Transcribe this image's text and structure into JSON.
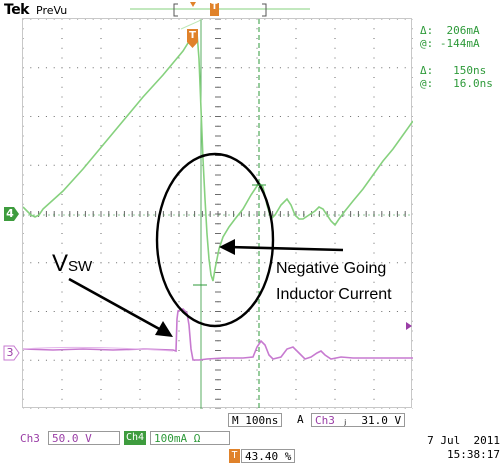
{
  "header": {
    "brand": "Tek",
    "mode": "PreVu",
    "trigger_marker": "T"
  },
  "cursor_readout": {
    "amp_delta_label": "Δ:",
    "amp_delta_value": "206mA",
    "amp_at_label": "@:",
    "amp_at_value": "-144mA",
    "time_delta_label": "Δ:",
    "time_delta_value": "150ns",
    "time_at_label": "@:",
    "time_at_value": "16.0ns"
  },
  "channels": {
    "ch4_marker": "4",
    "ch3_marker": "3"
  },
  "annotations": {
    "vsw_main": "V",
    "vsw_sub": "SW",
    "neg_line1": "Negative Going",
    "neg_line2": "Inductor Current"
  },
  "bottom_bar": {
    "timebase_prefix": "M",
    "timebase": "100ns",
    "trigger_mode": "A",
    "trigger_source": "Ch3",
    "trigger_slope": "ⱼ",
    "trigger_level": "31.0 V",
    "ch3_label": "Ch3",
    "ch3_scale": "50.0 V",
    "ch4_label": "Ch4",
    "ch4_scale": "100mA Ω",
    "trigger_pos_marker": "T",
    "trigger_pos": "43.40 %",
    "date": "7 Jul  2011",
    "time": "15:38:17"
  },
  "colors": {
    "ch4_trace": "#86d17e",
    "ch3_trace": "#c77ad0",
    "cursor_line": "#2e9a3a",
    "trigger_orange": "#e0822a",
    "grid_dot": "#6a6a6a"
  }
}
